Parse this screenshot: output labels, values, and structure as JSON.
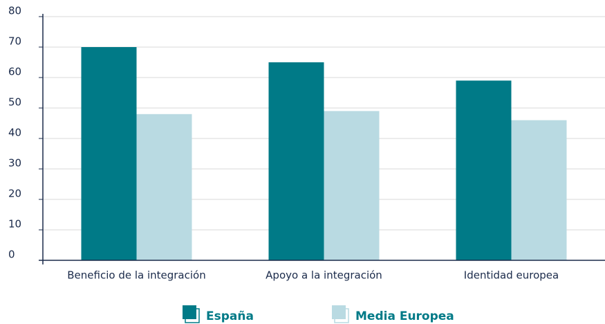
{
  "chart_data": {
    "type": "bar",
    "categories": [
      "Beneficio de la integración",
      "Apoyo a la integración",
      "Identidad europea"
    ],
    "series": [
      {
        "name": "España",
        "color": "#007a87",
        "values": [
          70,
          65,
          59
        ]
      },
      {
        "name": "Media Europea",
        "color": "#b9dae2",
        "values": [
          48,
          49,
          46
        ]
      }
    ],
    "ylim": [
      0,
      80
    ],
    "yticks": [
      0,
      10,
      20,
      30,
      40,
      50,
      60,
      70,
      80
    ],
    "grid": true,
    "legend": "bottom"
  }
}
